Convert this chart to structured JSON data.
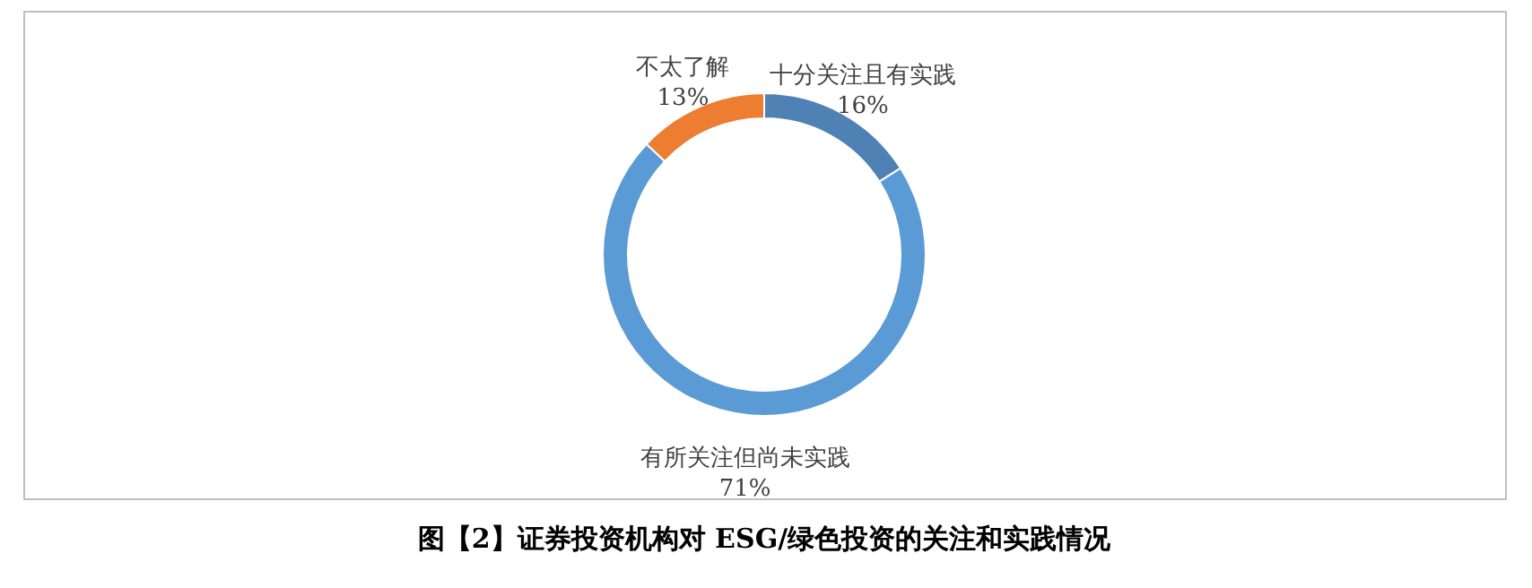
{
  "chart_data": {
    "type": "donut",
    "title": "图【2】证券投资机构对 ESG/绿色投资的关注和实践情况",
    "categories": [
      "十分关注且有实践",
      "有所关注但尚未实践",
      "不太了解"
    ],
    "values": [
      16,
      71,
      13
    ],
    "value_labels": [
      "16%",
      "71%",
      "13%"
    ],
    "colors": [
      "#4f81b5",
      "#5b9bd5",
      "#ed7d31"
    ]
  }
}
